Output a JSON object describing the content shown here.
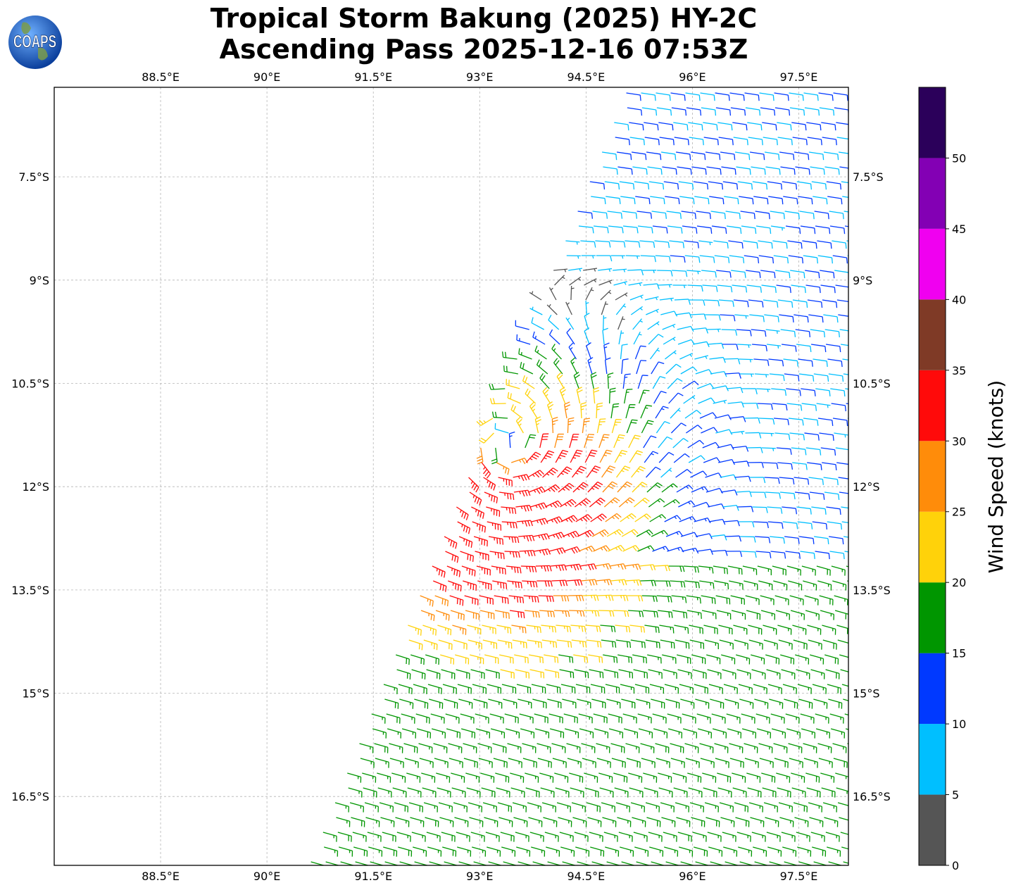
{
  "title": {
    "line1": "Tropical Storm Bakung (2025) HY-2C",
    "line2": "Ascending Pass 2025-12-16 07:53Z"
  },
  "logo": {
    "text": "COAPS",
    "icon": "globe-icon"
  },
  "map": {
    "lon_range": [
      87.0,
      98.2
    ],
    "lat_range": [
      -17.5,
      -6.2
    ],
    "lon_ticks": [
      {
        "value": 88.5,
        "label": "88.5°E"
      },
      {
        "value": 90.0,
        "label": "90°E"
      },
      {
        "value": 91.5,
        "label": "91.5°E"
      },
      {
        "value": 93.0,
        "label": "93°E"
      },
      {
        "value": 94.5,
        "label": "94.5°E"
      },
      {
        "value": 96.0,
        "label": "96°E"
      },
      {
        "value": 97.5,
        "label": "97.5°E"
      }
    ],
    "lat_ticks": [
      {
        "value": -7.5,
        "label": "7.5°S"
      },
      {
        "value": -9.0,
        "label": "9°S"
      },
      {
        "value": -10.5,
        "label": "10.5°S"
      },
      {
        "value": -12.0,
        "label": "12°S"
      },
      {
        "value": -13.5,
        "label": "13.5°S"
      },
      {
        "value": -15.0,
        "label": "15°S"
      },
      {
        "value": -16.5,
        "label": "16.5°S"
      }
    ],
    "gridlines": true,
    "storm_center": {
      "lon": 93.35,
      "lat": -11.5
    },
    "swath_boundary": {
      "top_left_lon": 95.1,
      "bottom_left_lon": 90.6
    }
  },
  "colorbar": {
    "label": "Wind Speed (knots)",
    "bins": [
      {
        "min": 0,
        "max": 5,
        "color": "#555555"
      },
      {
        "min": 5,
        "max": 10,
        "color": "#00bfff"
      },
      {
        "min": 10,
        "max": 15,
        "color": "#0039ff"
      },
      {
        "min": 15,
        "max": 20,
        "color": "#009600"
      },
      {
        "min": 20,
        "max": 25,
        "color": "#ffd20a"
      },
      {
        "min": 25,
        "max": 30,
        "color": "#ff8c0a"
      },
      {
        "min": 30,
        "max": 35,
        "color": "#ff0a0a"
      },
      {
        "min": 35,
        "max": 40,
        "color": "#7f3a26"
      },
      {
        "min": 40,
        "max": 45,
        "color": "#f000f0"
      },
      {
        "min": 45,
        "max": 50,
        "color": "#8300b4"
      },
      {
        "min": 50,
        "max": 55,
        "color": "#2b005a"
      }
    ],
    "tick_labels": [
      "0",
      "5",
      "10",
      "15",
      "20",
      "25",
      "30",
      "35",
      "40",
      "45",
      "50"
    ]
  }
}
